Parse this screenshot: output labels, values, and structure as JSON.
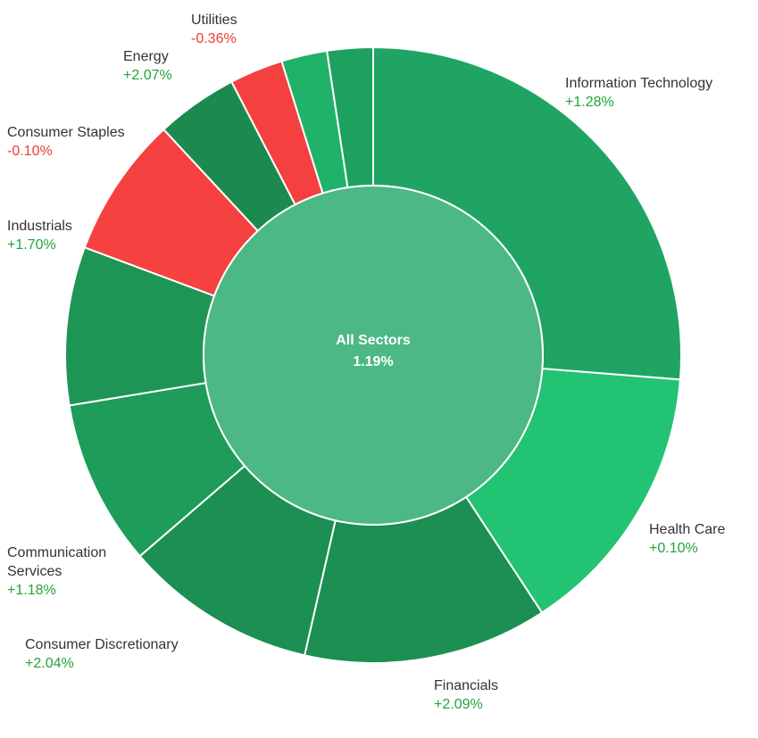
{
  "chart_data": {
    "type": "sunburst",
    "center_label": "All Sectors",
    "center_value": "1.19%",
    "center_color": "#4cb884",
    "categories": [
      "Information Technology",
      "Health Care",
      "Financials",
      "Consumer Discretionary",
      "Communication Services",
      "Industrials",
      "Consumer Staples",
      "Energy",
      "Utilities",
      null,
      null
    ],
    "values": [
      26.25,
      14.5,
      12.8,
      10.1,
      8.7,
      8.3,
      7.4,
      4.3,
      2.8,
      2.4,
      2.4
    ],
    "value_labels": [
      "+1.28%",
      "+0.10%",
      "+2.09%",
      "+2.04%",
      "+1.18%",
      "+1.70%",
      "-0.10%",
      "+2.07%",
      "-0.36%",
      null,
      null
    ],
    "colors": [
      "#1fa463",
      "#22c372",
      "#1c8f53",
      "#1c8f53",
      "#1e9c5a",
      "#1e9555",
      "#f5413f",
      "#1c8a4f",
      "#f44040",
      "#21b26a",
      "#1ea060"
    ]
  }
}
